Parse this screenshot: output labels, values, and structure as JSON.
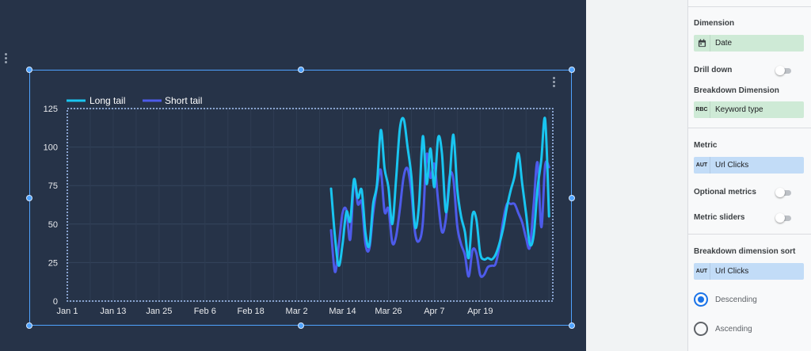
{
  "chart_data": {
    "type": "line",
    "x_tick_labels": [
      "Jan 1",
      "Jan 13",
      "Jan 25",
      "Feb 6",
      "Feb 18",
      "Mar 2",
      "Mar 14",
      "Mar 26",
      "Apr 7",
      "Apr 19"
    ],
    "y_tick_labels": [
      "0",
      "25",
      "50",
      "75",
      "100",
      "125"
    ],
    "ylim": [
      0,
      125
    ],
    "xlim_days": [
      0,
      127
    ],
    "grid": true,
    "legend_position": "top-left",
    "x_day_offsets": [
      69,
      70,
      71,
      72,
      73,
      74,
      75,
      76,
      77,
      78,
      79,
      80,
      81,
      82,
      83,
      84,
      85,
      86,
      87,
      88,
      89,
      90,
      91,
      92,
      93,
      94,
      95,
      96,
      97,
      98,
      99,
      100,
      101,
      102,
      103,
      104,
      105,
      106,
      107,
      108,
      109,
      110,
      111,
      112,
      113,
      114,
      115,
      116,
      117,
      118,
      119,
      120,
      121,
      122,
      123,
      124,
      125,
      126
    ],
    "series": [
      {
        "name": "Long tail",
        "color": "#19c5f0",
        "values": [
          73,
          42,
          23,
          37,
          58,
          52,
          79,
          67,
          72,
          44,
          36,
          63,
          76,
          111,
          86,
          74,
          50,
          79,
          112,
          118,
          100,
          81,
          48,
          63,
          107,
          76,
          99,
          74,
          106,
          96,
          58,
          79,
          108,
          73,
          55,
          45,
          28,
          56,
          53,
          31,
          27,
          28,
          27,
          30,
          37,
          47,
          61,
          72,
          81,
          96,
          76,
          57,
          37,
          43,
          73,
          92,
          118,
          55
        ]
      },
      {
        "name": "Short tail",
        "color": "#4d5bea",
        "values": [
          46,
          19,
          36,
          57,
          59,
          40,
          78,
          63,
          64,
          37,
          34,
          57,
          74,
          85,
          58,
          60,
          38,
          42,
          60,
          81,
          86,
          71,
          44,
          39,
          51,
          95,
          80,
          89,
          65,
          45,
          53,
          81,
          79,
          49,
          37,
          30,
          16,
          33,
          31,
          17,
          17,
          22,
          23,
          24,
          35,
          52,
          63,
          63,
          63,
          57,
          51,
          41,
          35,
          63,
          90,
          48,
          88,
          87
        ]
      }
    ]
  },
  "panel": {
    "dimension": {
      "title": "Dimension",
      "chip_label": "Date",
      "chip_icon": "calendar-icon"
    },
    "drill_down": {
      "label": "Drill down"
    },
    "breakdown": {
      "title": "Breakdown Dimension",
      "chip_badge": "RBC",
      "chip_label": "Keyword type"
    },
    "metric": {
      "title": "Metric",
      "chip_badge": "AUT",
      "chip_label": "Url Clicks"
    },
    "optional_metrics": {
      "label": "Optional metrics"
    },
    "metric_sliders": {
      "label": "Metric sliders"
    },
    "sort": {
      "title": "Breakdown dimension sort",
      "chip_badge": "AUT",
      "chip_label": "Url Clicks",
      "descending": "Descending",
      "ascending": "Ascending"
    }
  }
}
